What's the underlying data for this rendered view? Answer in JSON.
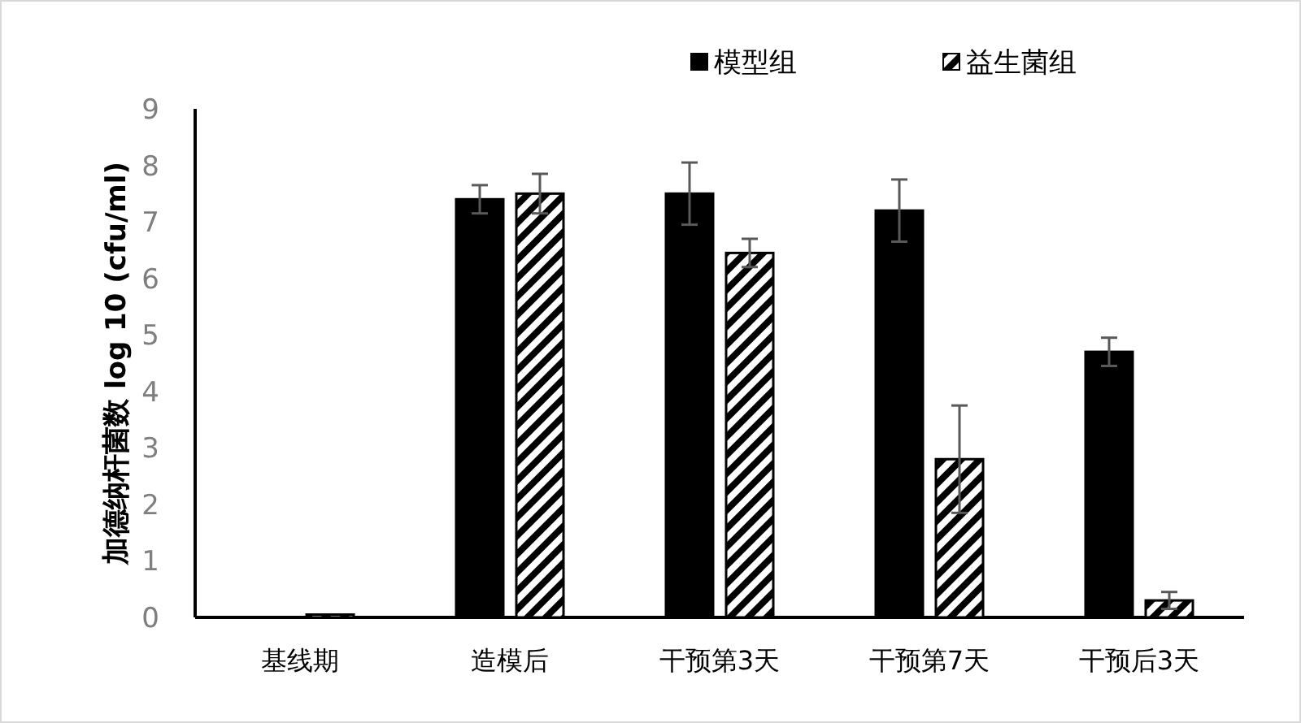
{
  "chart_data": {
    "type": "bar",
    "ylabel": "加德纳杆菌数 log 10 (cfu/ml)",
    "categories": [
      "基线期",
      "造模后",
      "干预第3天",
      "干预第7天",
      "干预后3天"
    ],
    "series": [
      {
        "name": "模型组",
        "color": "#000000",
        "values": [
          null,
          7.4,
          7.5,
          7.2,
          4.7
        ],
        "errors": [
          null,
          0.25,
          0.55,
          0.55,
          0.25
        ]
      },
      {
        "name": "益生菌组",
        "color": "#000000",
        "values": [
          0.05,
          7.5,
          6.45,
          2.8,
          0.3
        ],
        "errors": [
          null,
          0.35,
          0.25,
          0.95,
          0.15
        ]
      }
    ],
    "ylim": [
      0,
      9
    ],
    "yticks": [
      0,
      1,
      2,
      3,
      4,
      5,
      6,
      7,
      8,
      9
    ],
    "legend": "top",
    "grid": false
  }
}
